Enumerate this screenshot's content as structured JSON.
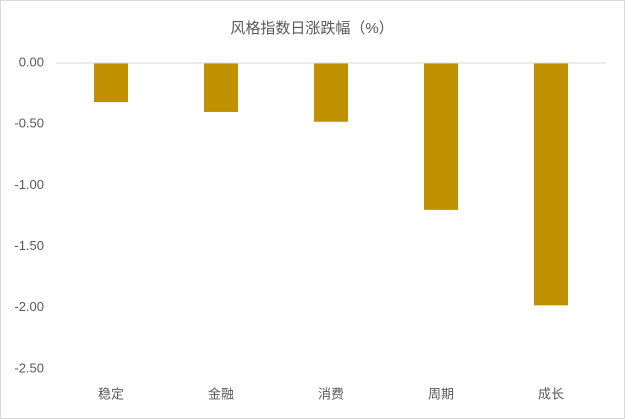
{
  "chart_data": {
    "type": "bar",
    "title": "风格指数日涨跌幅（%）",
    "categories": [
      "稳定",
      "金融",
      "消费",
      "周期",
      "成长"
    ],
    "values": [
      -0.32,
      -0.4,
      -0.48,
      -1.2,
      -1.98
    ],
    "color": "#bf9000",
    "ylim": [
      -2.5,
      0
    ],
    "yticks": [
      {
        "value": 0,
        "label": "0.00"
      },
      {
        "value": -0.5,
        "label": "-0.50"
      },
      {
        "value": -1,
        "label": "-1.00"
      },
      {
        "value": -1.5,
        "label": "-1.50"
      },
      {
        "value": -2,
        "label": "-2.00"
      },
      {
        "value": -2.5,
        "label": "-2.50"
      }
    ],
    "grid": false
  }
}
